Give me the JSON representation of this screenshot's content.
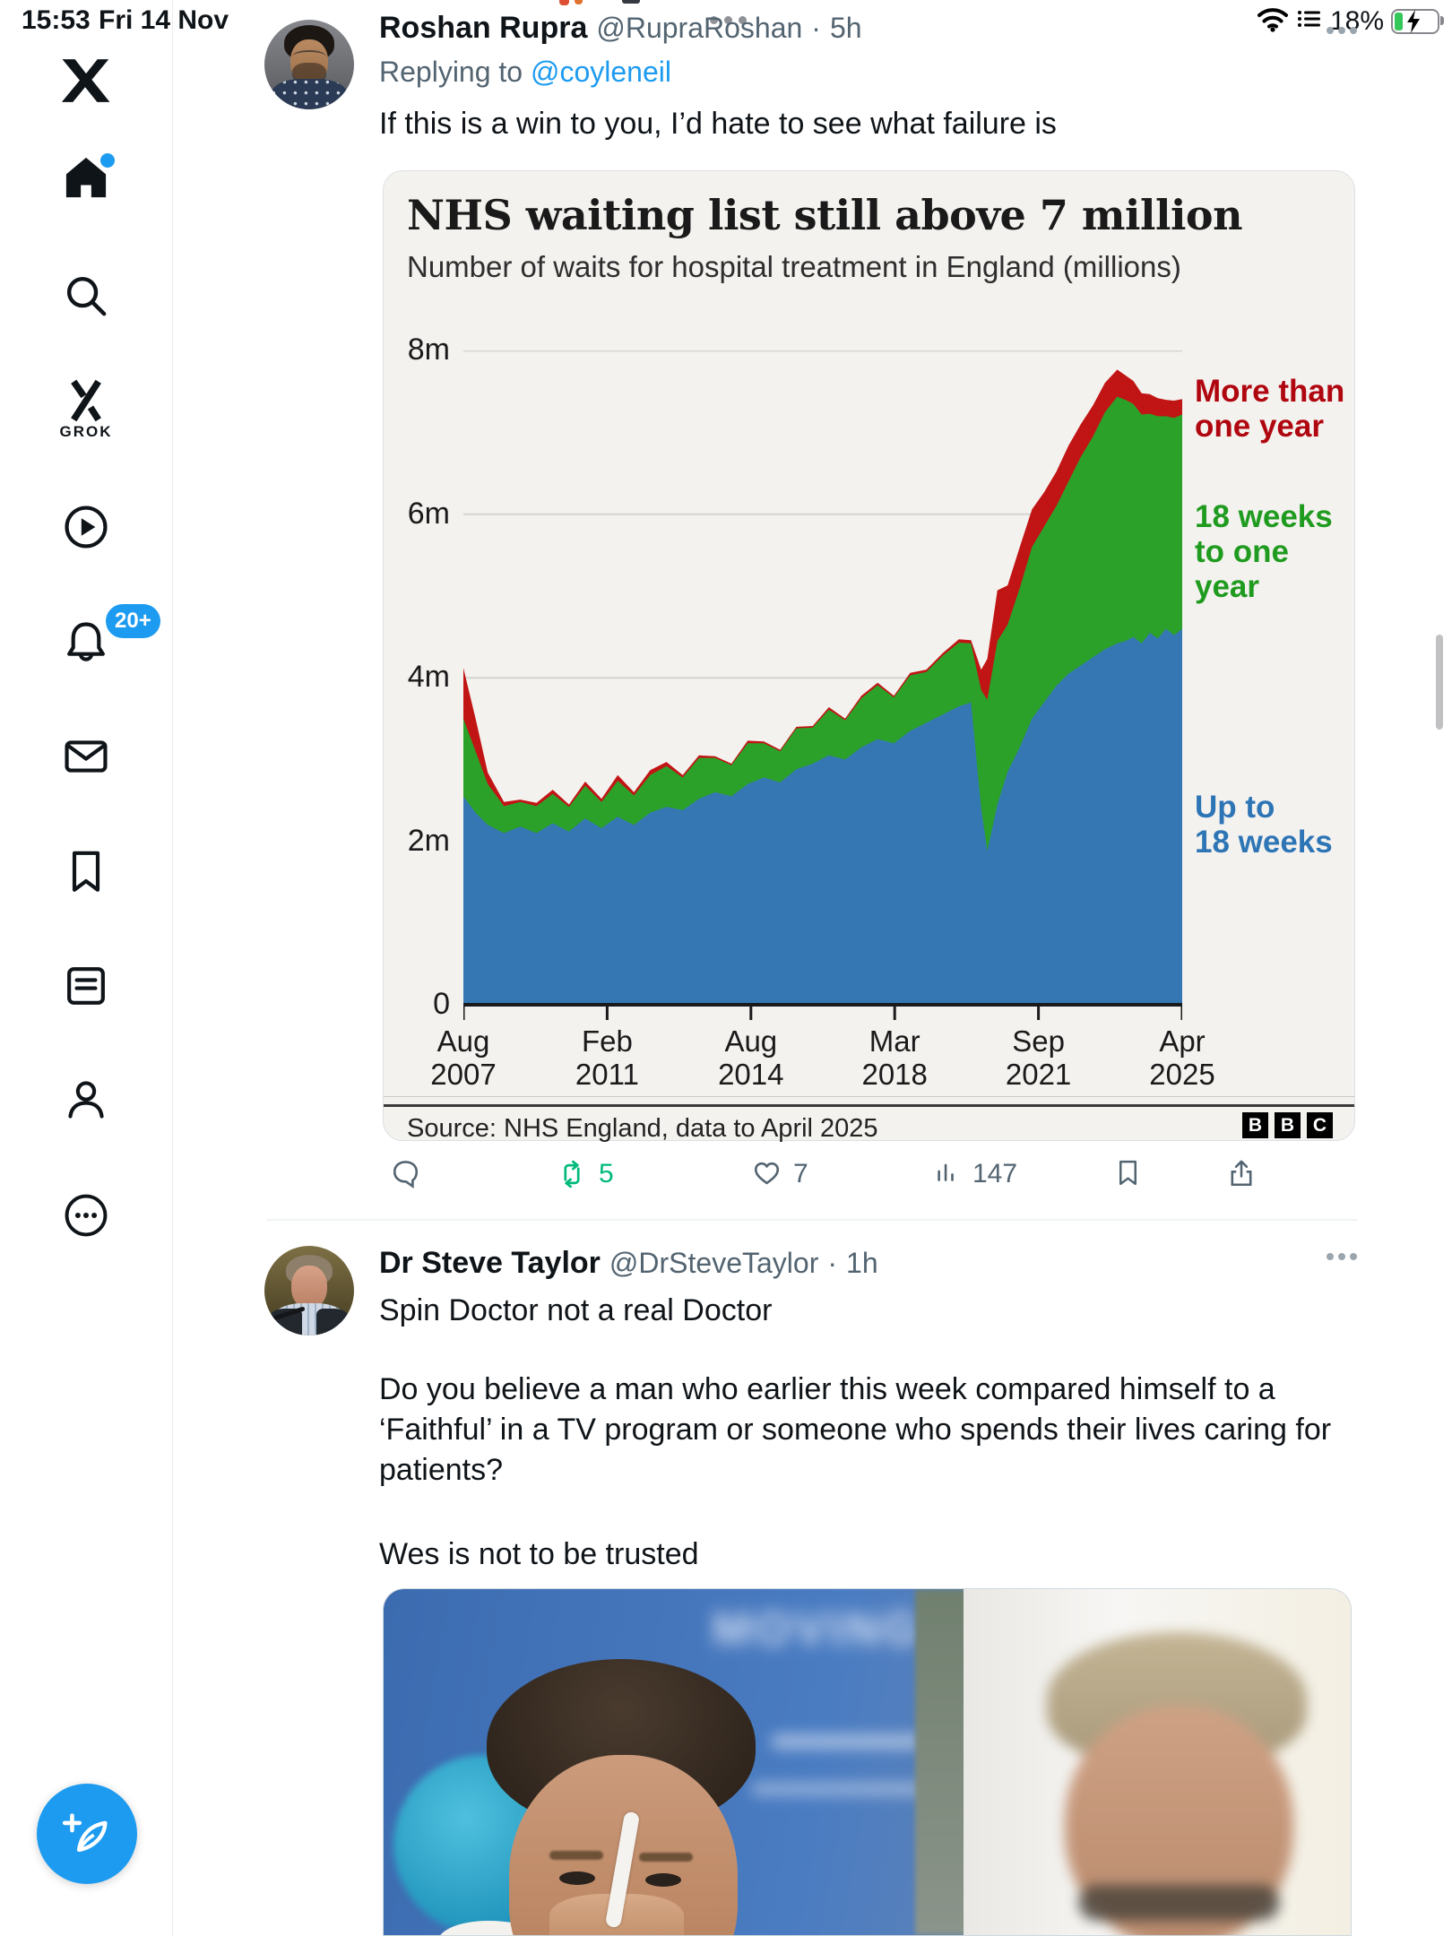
{
  "status_bar": {
    "time": "15:53",
    "date": "Fri 14 Nov",
    "battery_percent": "18%"
  },
  "sidebar": {
    "grok_label": "GROK",
    "notifications_badge": "20+",
    "items": [
      "x-logo",
      "home",
      "search",
      "grok",
      "video",
      "notifications",
      "messages",
      "bookmarks",
      "lists",
      "profile",
      "more"
    ]
  },
  "tweet1": {
    "name": "Roshan Rupra",
    "handle": "@RupraRoshan",
    "separator": "·",
    "time": "5h",
    "replying_prefix": "Replying to",
    "replying_handle": "@coyleneil",
    "body": "If this is a win to you, I’d hate to see what failure is",
    "actions": {
      "reply_count": "",
      "repost_count": "5",
      "like_count": "7",
      "view_count": "147"
    }
  },
  "chart_card": {
    "title": "NHS waiting list still above 7 million",
    "subtitle": "Number of waits for hospital treatment in England (millions)",
    "source": "Source: NHS England, data to April 2025",
    "logo_letters": [
      "B",
      "B",
      "C"
    ],
    "annotations": [
      {
        "text": "More than\none year",
        "color": "#b0060f"
      },
      {
        "text": "18 weeks\nto one year",
        "color": "#1f9b1f"
      },
      {
        "text": "Up to\n18 weeks",
        "color": "#2e75b6"
      }
    ]
  },
  "chart_data": {
    "type": "area",
    "stacked": true,
    "title": "NHS waiting list still above 7 million",
    "subtitle": "Number of waits for hospital treatment in England (millions)",
    "xlabel": "",
    "ylabel": "millions",
    "ylim": [
      0,
      8
    ],
    "grid": "horizontal",
    "legend_position": "right-annotations",
    "x": [
      2007.6,
      2007.9,
      2008.2,
      2008.6,
      2009.0,
      2009.4,
      2009.8,
      2010.2,
      2010.6,
      2011.0,
      2011.4,
      2011.8,
      2012.2,
      2012.6,
      2013.0,
      2013.4,
      2013.8,
      2014.2,
      2014.6,
      2015.0,
      2015.4,
      2015.8,
      2016.2,
      2016.6,
      2017.0,
      2017.4,
      2017.8,
      2018.2,
      2018.6,
      2019.0,
      2019.4,
      2019.8,
      2020.1,
      2020.35,
      2020.5,
      2020.75,
      2021.0,
      2021.3,
      2021.6,
      2021.9,
      2022.2,
      2022.5,
      2022.8,
      2023.1,
      2023.4,
      2023.7,
      2023.9,
      2024.1,
      2024.3,
      2024.5,
      2024.7,
      2024.9,
      2025.1,
      2025.3
    ],
    "series": [
      {
        "name": "Up to 18 weeks",
        "color": "#3577b2",
        "values": [
          2.55,
          2.35,
          2.2,
          2.1,
          2.18,
          2.1,
          2.22,
          2.12,
          2.28,
          2.16,
          2.3,
          2.2,
          2.35,
          2.42,
          2.38,
          2.52,
          2.6,
          2.55,
          2.7,
          2.78,
          2.72,
          2.88,
          2.95,
          3.05,
          3.0,
          3.15,
          3.25,
          3.2,
          3.35,
          3.45,
          3.55,
          3.65,
          3.7,
          2.4,
          1.88,
          2.45,
          2.85,
          3.15,
          3.5,
          3.7,
          3.9,
          4.05,
          4.15,
          4.25,
          4.35,
          4.42,
          4.45,
          4.5,
          4.42,
          4.55,
          4.48,
          4.6,
          4.52,
          4.6
        ]
      },
      {
        "name": "18 weeks to one year",
        "color": "#2ba12a",
        "values": [
          0.95,
          0.75,
          0.5,
          0.33,
          0.3,
          0.33,
          0.36,
          0.3,
          0.4,
          0.32,
          0.44,
          0.36,
          0.46,
          0.5,
          0.4,
          0.5,
          0.42,
          0.38,
          0.5,
          0.42,
          0.38,
          0.5,
          0.44,
          0.56,
          0.48,
          0.6,
          0.66,
          0.56,
          0.68,
          0.62,
          0.72,
          0.78,
          0.72,
          1.45,
          1.85,
          2.0,
          1.8,
          1.95,
          2.1,
          2.15,
          2.2,
          2.35,
          2.55,
          2.7,
          2.9,
          3.02,
          2.95,
          2.85,
          2.8,
          2.68,
          2.72,
          2.6,
          2.66,
          2.62
        ]
      },
      {
        "name": "More than one year",
        "color": "#c11414",
        "values": [
          0.62,
          0.4,
          0.14,
          0.05,
          0.03,
          0.04,
          0.05,
          0.03,
          0.05,
          0.04,
          0.07,
          0.04,
          0.06,
          0.05,
          0.03,
          0.03,
          0.02,
          0.02,
          0.03,
          0.02,
          0.02,
          0.02,
          0.02,
          0.03,
          0.02,
          0.03,
          0.03,
          0.02,
          0.03,
          0.03,
          0.03,
          0.04,
          0.04,
          0.25,
          0.5,
          0.62,
          0.48,
          0.5,
          0.46,
          0.42,
          0.42,
          0.44,
          0.4,
          0.38,
          0.36,
          0.33,
          0.3,
          0.28,
          0.26,
          0.24,
          0.22,
          0.2,
          0.21,
          0.19
        ]
      }
    ],
    "y_ticks": [
      {
        "label": "8m",
        "value": 8
      },
      {
        "label": "6m",
        "value": 6
      },
      {
        "label": "4m",
        "value": 4
      },
      {
        "label": "2m",
        "value": 2
      },
      {
        "label": "0",
        "value": 0
      }
    ],
    "x_ticks": [
      {
        "month": "Aug",
        "year": "2007"
      },
      {
        "month": "Feb",
        "year": "2011"
      },
      {
        "month": "Aug",
        "year": "2014"
      },
      {
        "month": "Mar",
        "year": "2018"
      },
      {
        "month": "Sep",
        "year": "2021"
      },
      {
        "month": "Apr",
        "year": "2025"
      }
    ]
  },
  "tweet2": {
    "name": "Dr Steve Taylor",
    "handle": "@DrSteveTaylor",
    "separator": "·",
    "time": "1h",
    "line1": "Spin Doctor not a real Doctor",
    "paragraph": "Do you believe a man who earlier this week compared himself to a ‘Faithful’ in a TV program or someone who spends their lives caring for patients?",
    "line3": "Wes is not to be trusted",
    "photo": {
      "sign_text": "MOVING"
    }
  },
  "colors": {
    "accent": "#1d9bf0",
    "repost_green": "#00ba7c",
    "text_secondary": "#536471",
    "card_bg": "#f4f2ef"
  }
}
